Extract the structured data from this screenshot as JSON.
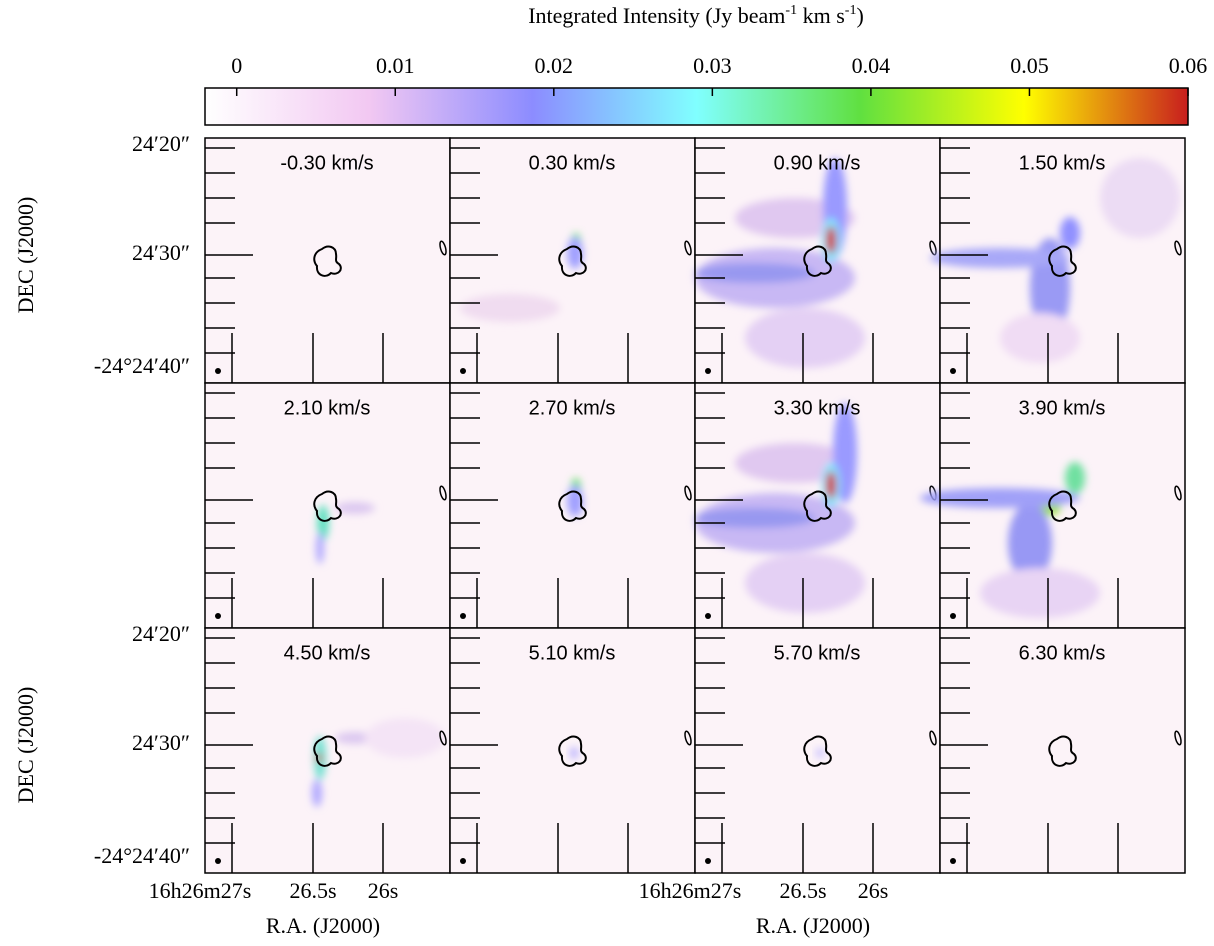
{
  "colorbar": {
    "title": [
      "Integrated Intensity (Jy beam",
      "-1",
      " km s",
      "-1",
      ")"
    ],
    "lim": [
      -0.002,
      0.06
    ],
    "ticks": [
      0,
      0.01,
      0.02,
      0.03,
      0.04,
      0.05,
      0.06
    ],
    "colors": [
      "#ffffff",
      "#f2c8f2",
      "#8c8cff",
      "#80ffff",
      "#60e040",
      "#ffff00",
      "#c81e1e"
    ]
  },
  "panels": [
    {
      "label": "-0.30 km/s"
    },
    {
      "label": "0.30 km/s"
    },
    {
      "label": "0.90 km/s"
    },
    {
      "label": "1.50 km/s"
    },
    {
      "label": "2.10 km/s"
    },
    {
      "label": "2.70 km/s"
    },
    {
      "label": "3.30 km/s"
    },
    {
      "label": "3.90 km/s"
    },
    {
      "label": "4.50 km/s"
    },
    {
      "label": "5.10 km/s"
    },
    {
      "label": "5.70 km/s"
    },
    {
      "label": "6.30 km/s"
    }
  ],
  "y_axis": {
    "title": "DEC (J2000)",
    "ticks": [
      "24′20″",
      "24′30″",
      "-24°24′40″"
    ]
  },
  "x_axis": {
    "title": "R.A. (J2000)",
    "ticks": [
      "16h26m27s",
      "26.5s",
      "26s"
    ]
  }
}
